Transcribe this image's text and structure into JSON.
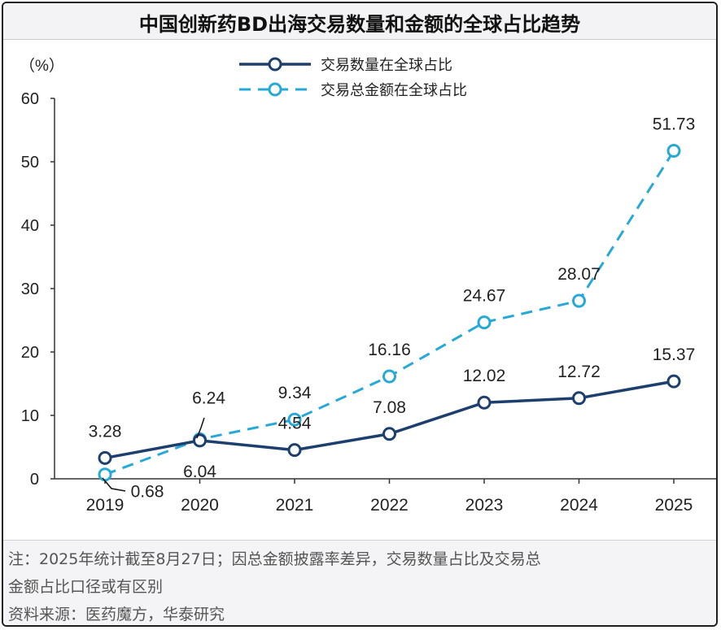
{
  "title": "中国创新药BD出海交易数量和金额的全球占比趋势",
  "yunit": "（%）",
  "chart_data": {
    "type": "line",
    "x": [
      "2019",
      "2020",
      "2021",
      "2022",
      "2023",
      "2024",
      "2025"
    ],
    "ylim": [
      0,
      60
    ],
    "yticks": [
      "0",
      "10",
      "20",
      "30",
      "40",
      "50",
      "60"
    ],
    "grid": false,
    "legend_position": "top-center",
    "series": [
      {
        "name": "交易数量在全球占比",
        "values": [
          3.28,
          6.04,
          4.54,
          7.08,
          12.02,
          12.72,
          15.37
        ],
        "labels": [
          "3.28",
          "6.04",
          "4.54",
          "7.08",
          "12.02",
          "12.72",
          "15.37"
        ],
        "color": "#1c3f6e",
        "style": "solid"
      },
      {
        "name": "交易总金额在全球占比",
        "values": [
          0.68,
          6.24,
          9.34,
          16.16,
          24.67,
          28.07,
          51.73
        ],
        "labels": [
          "0.68",
          "6.24",
          "9.34",
          "16.16",
          "24.67",
          "28.07",
          "51.73"
        ],
        "color": "#27a9d8",
        "style": "dashed"
      }
    ]
  },
  "notes": {
    "line1": "注：2025年统计截至8月27日；因总金额披露率差异，交易数量占比及交易总",
    "line2": "金额占比口径或有区别",
    "line3": "资料来源：医药魔方，华泰研究"
  }
}
